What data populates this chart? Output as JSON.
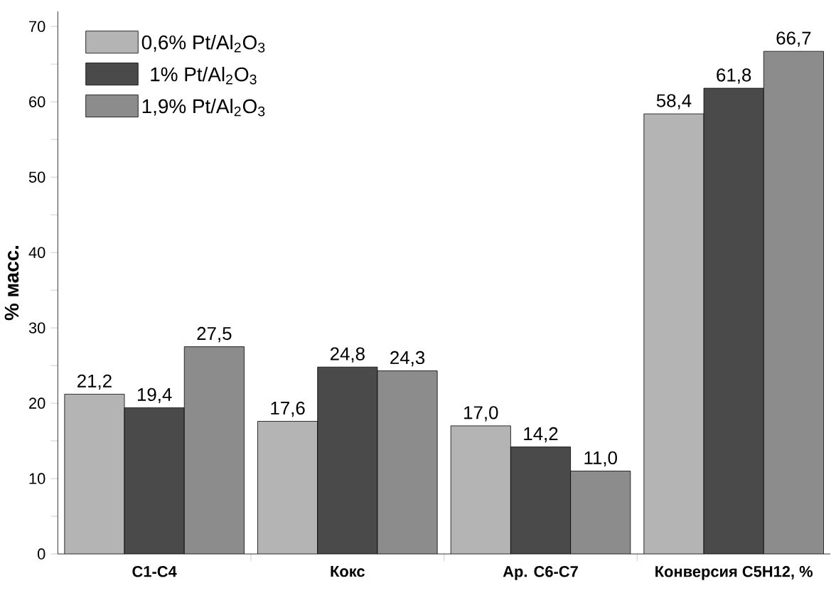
{
  "chart_data": {
    "type": "bar",
    "ylabel": "% масс.",
    "categories": [
      "C1-C4",
      "Кокс",
      "Ар. C6-C7",
      "Конверсия C5H12, %"
    ],
    "series": [
      {
        "name": "0,6% Pt/Al$_{2}$O$_{3}$",
        "color": "#b4b4b4",
        "values": [
          21.2,
          17.6,
          17.0,
          58.4
        ],
        "value_labels": [
          "21,2",
          "17,6",
          "17,0",
          "58,4"
        ]
      },
      {
        "name": "1% Pt/Al$_{2}$O$_{3}$",
        "color": "#4a4a4a",
        "values": [
          19.4,
          24.8,
          14.2,
          61.8
        ],
        "value_labels": [
          "19,4",
          "24,8",
          "14,2",
          "61,8"
        ]
      },
      {
        "name": "1,9% Pt/Al$_{2}$O$_{3}$",
        "color": "#8c8c8c",
        "values": [
          27.5,
          24.3,
          11.0,
          66.7
        ],
        "value_labels": [
          "27,5",
          "24,3",
          "11,0",
          "66,7"
        ]
      }
    ],
    "ylim": [
      0,
      72
    ],
    "yticks": [
      0,
      10,
      20,
      30,
      40,
      50,
      60,
      70
    ],
    "legend": "top left"
  }
}
